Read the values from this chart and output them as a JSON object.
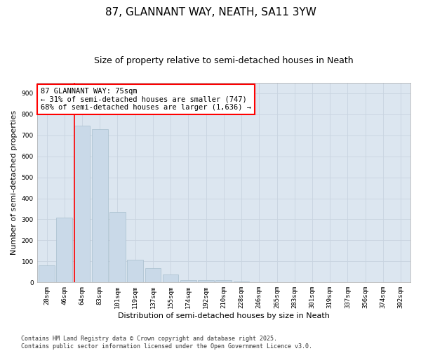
{
  "title": "87, GLANNANT WAY, NEATH, SA11 3YW",
  "subtitle": "Size of property relative to semi-detached houses in Neath",
  "xlabel": "Distribution of semi-detached houses by size in Neath",
  "ylabel": "Number of semi-detached properties",
  "categories": [
    "28sqm",
    "46sqm",
    "64sqm",
    "83sqm",
    "101sqm",
    "119sqm",
    "137sqm",
    "155sqm",
    "174sqm",
    "192sqm",
    "210sqm",
    "228sqm",
    "246sqm",
    "265sqm",
    "283sqm",
    "301sqm",
    "319sqm",
    "337sqm",
    "356sqm",
    "374sqm",
    "392sqm"
  ],
  "values": [
    80,
    308,
    747,
    730,
    335,
    108,
    68,
    38,
    12,
    10,
    10,
    5,
    2,
    0,
    0,
    0,
    0,
    0,
    0,
    0,
    0
  ],
  "bar_color": "#c9d9e8",
  "bar_edge_color": "#a8bece",
  "grid_color": "#c8d4e0",
  "background_color": "#dce6f0",
  "annotation_box_text": "87 GLANNANT WAY: 75sqm\n← 31% of semi-detached houses are smaller (747)\n68% of semi-detached houses are larger (1,636) →",
  "annotation_box_edge_color": "red",
  "red_line_bar_index": 2,
  "ylim": [
    0,
    950
  ],
  "yticks": [
    0,
    100,
    200,
    300,
    400,
    500,
    600,
    700,
    800,
    900
  ],
  "footer_text": "Contains HM Land Registry data © Crown copyright and database right 2025.\nContains public sector information licensed under the Open Government Licence v3.0.",
  "title_fontsize": 11,
  "subtitle_fontsize": 9,
  "axis_label_fontsize": 8,
  "tick_fontsize": 6.5,
  "annotation_fontsize": 7.5,
  "footer_fontsize": 6
}
